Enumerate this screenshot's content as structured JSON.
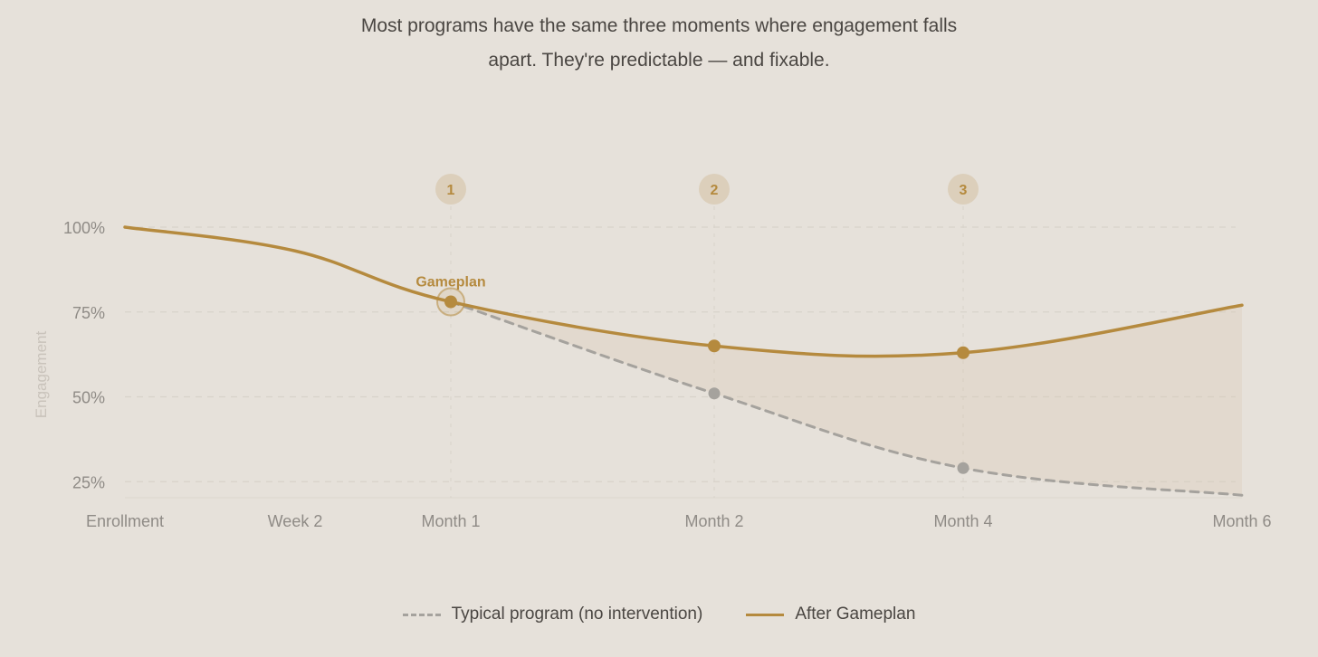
{
  "intro": {
    "line1": "Most programs have the same three moments where engagement falls",
    "line2": "apart. They're predictable — and fixable."
  },
  "colors": {
    "background": "#e6e1da",
    "accent": "#b58a3e",
    "typical": "#a5a29d",
    "grid": "#d8d2ca",
    "axis_text": "#8f8b86",
    "ylabel_text": "#c9c3bb"
  },
  "chart_data": {
    "type": "line",
    "x": [
      "Enrollment",
      "Week 2",
      "Month 1",
      "Month 2",
      "Month 4",
      "Month 6"
    ],
    "y_ticks": [
      "100%",
      "75%",
      "50%",
      "25%"
    ],
    "ylabel": "Engagement",
    "ylim": [
      18,
      100
    ],
    "grid": true,
    "legend_position": "bottom-center",
    "series": [
      {
        "name": "Typical program (no intervention)",
        "style": "dashed",
        "points": [
          [
            "Month 1",
            78
          ],
          [
            "Month 2",
            51
          ],
          [
            "Month 4",
            29
          ],
          [
            "Month 6",
            21
          ]
        ],
        "markers": [
          "Month 2",
          "Month 4"
        ]
      },
      {
        "name": "After Gameplan",
        "style": "solid",
        "points": [
          [
            "Enrollment",
            100
          ],
          [
            "Week 2",
            93
          ],
          [
            "Month 1",
            78
          ],
          [
            "Month 2",
            65
          ],
          [
            "Month 4",
            63
          ],
          [
            "Month 6",
            77
          ]
        ],
        "markers": [
          "Month 1",
          "Month 2",
          "Month 4"
        ]
      }
    ],
    "moments": [
      {
        "label": "1",
        "at": "Month 1"
      },
      {
        "label": "2",
        "at": "Month 2"
      },
      {
        "label": "3",
        "at": "Month 4"
      }
    ],
    "annotation": {
      "text": "Gameplan",
      "at": "Month 1"
    }
  }
}
